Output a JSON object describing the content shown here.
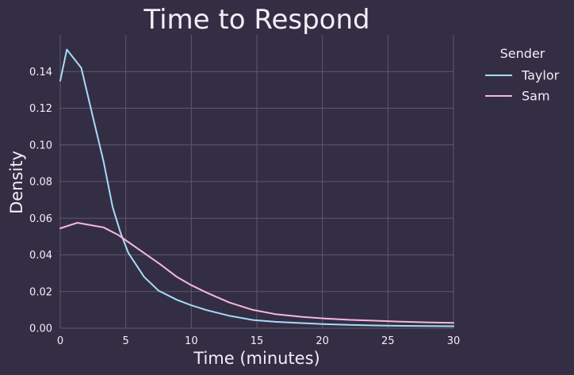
{
  "chart_data": {
    "type": "line",
    "title": "Time to Respond",
    "xlabel": "Time (minutes)",
    "ylabel": "Density",
    "xlim": [
      0,
      30
    ],
    "ylim": [
      0,
      0.16
    ],
    "x_ticks": [
      0,
      5,
      10,
      15,
      20,
      25,
      30
    ],
    "x_tick_labels": [
      "0",
      "5",
      "10",
      "15",
      "20",
      "25",
      "30"
    ],
    "y_ticks": [
      0.0,
      0.02,
      0.04,
      0.06,
      0.08,
      0.1,
      0.12,
      0.14
    ],
    "y_tick_labels": [
      "0.00",
      "0.02",
      "0.04",
      "0.06",
      "0.08",
      "0.10",
      "0.12",
      "0.14"
    ],
    "grid": true,
    "legend": {
      "title": "Sender",
      "placement": "right outside"
    },
    "series": [
      {
        "name": "Taylor",
        "color": "#a6dcf7",
        "x": [
          0,
          0.5,
          1.6,
          2.7,
          3.3,
          4.0,
          4.6,
          5.2,
          6.4,
          7.5,
          8.9,
          10.0,
          11.2,
          12.9,
          14.7,
          16.4,
          18.4,
          20.2,
          22.0,
          24.0,
          26.1,
          28.0,
          30.0
        ],
        "values": [
          0.135,
          0.152,
          0.142,
          0.109,
          0.091,
          0.066,
          0.052,
          0.041,
          0.028,
          0.0205,
          0.0155,
          0.0125,
          0.0098,
          0.0068,
          0.0045,
          0.0035,
          0.0028,
          0.0022,
          0.0018,
          0.0015,
          0.0013,
          0.0012,
          0.0011
        ]
      },
      {
        "name": "Sam",
        "color": "#f5b8de",
        "x": [
          0,
          1.3,
          3.3,
          4.4,
          5.3,
          6.4,
          7.6,
          8.9,
          10.0,
          11.3,
          12.9,
          14.7,
          16.4,
          18.5,
          20.2,
          22.0,
          24.0,
          26.0,
          28.0,
          30.0
        ],
        "values": [
          0.0545,
          0.0575,
          0.055,
          0.051,
          0.0465,
          0.041,
          0.035,
          0.028,
          0.0235,
          0.019,
          0.014,
          0.01,
          0.0077,
          0.0062,
          0.0053,
          0.0046,
          0.0041,
          0.0036,
          0.0032,
          0.0029
        ]
      }
    ]
  }
}
